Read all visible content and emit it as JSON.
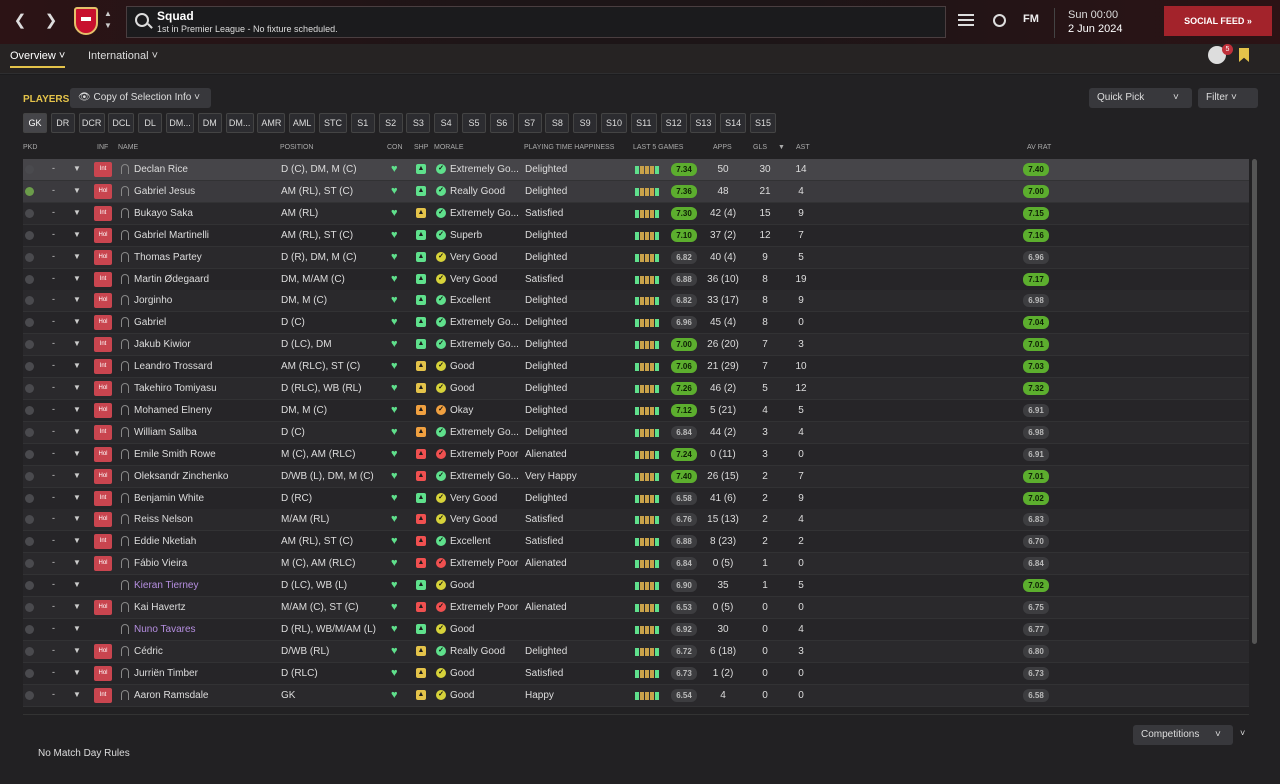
{
  "topbar": {
    "title": "Squad",
    "subtitle": "1st in Premier League - No fixture scheduled.",
    "fm_label": "FM",
    "date_line1": "Sun 00:00",
    "date_line2": "2 Jun 2024",
    "social_feed": "SOCIAL FEED",
    "notif_count": "5"
  },
  "tabs": [
    "Overview",
    "International"
  ],
  "players_label": "PLAYERS",
  "selection_btn": "Copy of Selection Info",
  "quick_pick": "Quick Pick",
  "filter": "Filter",
  "positions": [
    "GK",
    "DR",
    "DCR",
    "DCL",
    "DL",
    "DM...",
    "DM",
    "DM...",
    "AMR",
    "AML",
    "STC",
    "S1",
    "S2",
    "S3",
    "S4",
    "S5",
    "S6",
    "S7",
    "S8",
    "S9",
    "S10",
    "S11",
    "S12",
    "S13",
    "S14",
    "S15"
  ],
  "columns": {
    "pkd": "PKD",
    "inf": "INF",
    "name": "NAME",
    "position": "POSITION",
    "con": "CON",
    "shp": "SHP",
    "morale": "MORALE",
    "happiness": "PLAYING TIME HAPPINESS",
    "last5": "LAST 5 GAMES",
    "apps": "APPS",
    "gls": "GLS",
    "ast": "AST",
    "avrat": "AV RAT"
  },
  "rows": [
    {
      "inf": "Int",
      "name": "Declan Rice",
      "position": "D (C), DM, M (C)",
      "morale": "Extremely Go...",
      "happiness": "Delighted",
      "last5": "7.34",
      "apps": "50",
      "gls": "30",
      "ast": "14",
      "avrat": "7.40"
    },
    {
      "inf": "Hol",
      "name": "Gabriel Jesus",
      "position": "AM (RL), ST (C)",
      "morale": "Really Good",
      "happiness": "Delighted",
      "last5": "7.36",
      "apps": "48",
      "gls": "21",
      "ast": "4",
      "avrat": "7.00"
    },
    {
      "inf": "Int",
      "name": "Bukayo Saka",
      "position": "AM (RL)",
      "morale": "Extremely Go...",
      "happiness": "Satisfied",
      "last5": "7.30",
      "apps": "42 (4)",
      "gls": "15",
      "ast": "9",
      "avrat": "7.15"
    },
    {
      "inf": "Hol",
      "name": "Gabriel Martinelli",
      "position": "AM (RL), ST (C)",
      "morale": "Superb",
      "happiness": "Delighted",
      "last5": "7.10",
      "apps": "37 (2)",
      "gls": "12",
      "ast": "7",
      "avrat": "7.16"
    },
    {
      "inf": "Hol",
      "name": "Thomas Partey",
      "position": "D (R), DM, M (C)",
      "morale": "Very Good",
      "happiness": "Delighted",
      "last5": "6.82",
      "apps": "40 (4)",
      "gls": "9",
      "ast": "5",
      "avrat": "6.96"
    },
    {
      "inf": "Int",
      "name": "Martin Ødegaard",
      "position": "DM, M/AM (C)",
      "morale": "Very Good",
      "happiness": "Satisfied",
      "last5": "6.88",
      "apps": "36 (10)",
      "gls": "8",
      "ast": "19",
      "avrat": "7.17"
    },
    {
      "inf": "Hol",
      "name": "Jorginho",
      "position": "DM, M (C)",
      "morale": "Excellent",
      "happiness": "Delighted",
      "last5": "6.82",
      "apps": "33 (17)",
      "gls": "8",
      "ast": "9",
      "avrat": "6.98"
    },
    {
      "inf": "Hol",
      "name": "Gabriel",
      "position": "D (C)",
      "morale": "Extremely Go...",
      "happiness": "Delighted",
      "last5": "6.96",
      "apps": "45 (4)",
      "gls": "8",
      "ast": "0",
      "avrat": "7.04"
    },
    {
      "inf": "Int",
      "name": "Jakub Kiwior",
      "position": "D (LC), DM",
      "morale": "Extremely Go...",
      "happiness": "Delighted",
      "last5": "7.00",
      "apps": "26 (20)",
      "gls": "7",
      "ast": "3",
      "avrat": "7.01"
    },
    {
      "inf": "Int",
      "name": "Leandro Trossard",
      "position": "AM (RLC), ST (C)",
      "morale": "Good",
      "happiness": "Delighted",
      "last5": "7.06",
      "apps": "21 (29)",
      "gls": "7",
      "ast": "10",
      "avrat": "7.03"
    },
    {
      "inf": "Hol",
      "name": "Takehiro Tomiyasu",
      "position": "D (RLC), WB (RL)",
      "morale": "Good",
      "happiness": "Delighted",
      "last5": "7.26",
      "apps": "46 (2)",
      "gls": "5",
      "ast": "12",
      "avrat": "7.32"
    },
    {
      "inf": "Hol",
      "name": "Mohamed Elneny",
      "position": "DM, M (C)",
      "morale": "Okay",
      "happiness": "Delighted",
      "last5": "7.12",
      "apps": "5 (21)",
      "gls": "4",
      "ast": "5",
      "avrat": "6.91"
    },
    {
      "inf": "Int",
      "name": "William Saliba",
      "position": "D (C)",
      "morale": "Extremely Go...",
      "happiness": "Delighted",
      "last5": "6.84",
      "apps": "44 (2)",
      "gls": "3",
      "ast": "4",
      "avrat": "6.98"
    },
    {
      "inf": "Hol",
      "name": "Emile Smith Rowe",
      "position": "M (C), AM (RLC)",
      "morale": "Extremely Poor",
      "happiness": "Alienated",
      "last5": "7.24",
      "apps": "0 (11)",
      "gls": "3",
      "ast": "0",
      "avrat": "6.91"
    },
    {
      "inf": "Hol",
      "name": "Oleksandr Zinchenko",
      "position": "D/WB (L), DM, M (C)",
      "morale": "Extremely Go...",
      "happiness": "Very Happy",
      "last5": "7.40",
      "apps": "26 (15)",
      "gls": "2",
      "ast": "7",
      "avrat": "7.01"
    },
    {
      "inf": "Int",
      "name": "Benjamin White",
      "position": "D (RC)",
      "morale": "Very Good",
      "happiness": "Delighted",
      "last5": "6.58",
      "apps": "41 (6)",
      "gls": "2",
      "ast": "9",
      "avrat": "7.02"
    },
    {
      "inf": "Hol",
      "name": "Reiss Nelson",
      "position": "M/AM (RL)",
      "morale": "Very Good",
      "happiness": "Satisfied",
      "last5": "6.76",
      "apps": "15 (13)",
      "gls": "2",
      "ast": "4",
      "avrat": "6.83"
    },
    {
      "inf": "Int",
      "name": "Eddie Nketiah",
      "position": "AM (RL), ST (C)",
      "morale": "Excellent",
      "happiness": "Satisfied",
      "last5": "6.88",
      "apps": "8 (23)",
      "gls": "2",
      "ast": "2",
      "avrat": "6.70"
    },
    {
      "inf": "Hol",
      "name": "Fábio Vieira",
      "position": "M (C), AM (RLC)",
      "morale": "Extremely Poor",
      "happiness": "Alienated",
      "last5": "6.84",
      "apps": "0 (5)",
      "gls": "1",
      "ast": "0",
      "avrat": "6.84"
    },
    {
      "inf": "",
      "name": "Kieran Tierney",
      "position": "D (LC), WB (L)",
      "morale": "Good",
      "happiness": "",
      "last5": "6.90",
      "apps": "35",
      "gls": "1",
      "ast": "5",
      "avrat": "7.02"
    },
    {
      "inf": "Hol",
      "name": "Kai Havertz",
      "position": "M/AM (C), ST (C)",
      "morale": "Extremely Poor",
      "happiness": "Alienated",
      "last5": "6.53",
      "apps": "0 (5)",
      "gls": "0",
      "ast": "0",
      "avrat": "6.75"
    },
    {
      "inf": "",
      "name": "Nuno Tavares",
      "position": "D (RL), WB/M/AM (L)",
      "morale": "Good",
      "happiness": "",
      "last5": "6.92",
      "apps": "30",
      "gls": "0",
      "ast": "4",
      "avrat": "6.77"
    },
    {
      "inf": "Hol",
      "name": "Cédric",
      "position": "D/WB (RL)",
      "morale": "Really Good",
      "happiness": "Delighted",
      "last5": "6.72",
      "apps": "6 (18)",
      "gls": "0",
      "ast": "3",
      "avrat": "6.80"
    },
    {
      "inf": "Hol",
      "name": "Jurriën Timber",
      "position": "D (RLC)",
      "morale": "Good",
      "happiness": "Satisfied",
      "last5": "6.73",
      "apps": "1 (2)",
      "gls": "0",
      "ast": "0",
      "avrat": "6.73"
    },
    {
      "inf": "Int",
      "name": "Aaron Ramsdale",
      "position": "GK",
      "morale": "Good",
      "happiness": "Happy",
      "last5": "6.54",
      "apps": "4",
      "gls": "0",
      "ast": "0",
      "avrat": "6.58"
    }
  ],
  "competitions": "Competitions",
  "no_match": "No Match Day Rules"
}
